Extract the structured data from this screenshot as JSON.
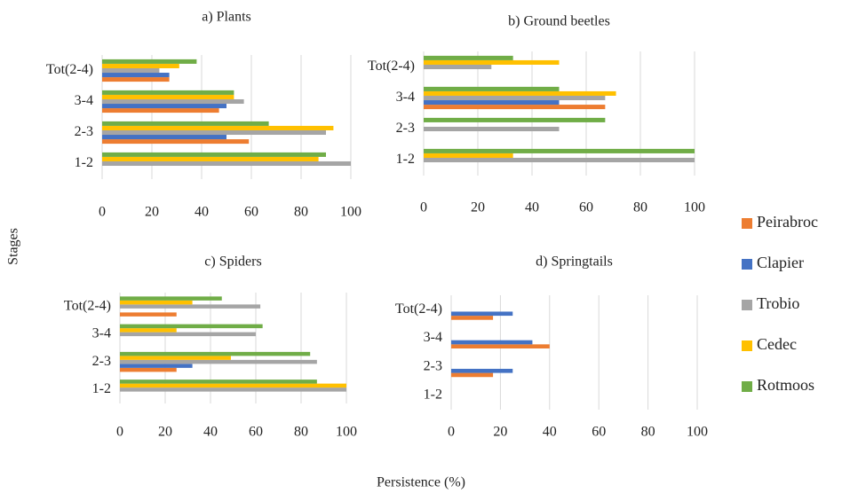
{
  "figure": {
    "xlabel": "Persistence (%)",
    "ylabel": "Stages"
  },
  "chart_data": [
    {
      "type": "barh",
      "title": "a) Plants",
      "categories": [
        "1-2",
        "2-3",
        "3-4",
        "Tot(2-4)"
      ],
      "series": [
        {
          "name": "Peirabroc",
          "color": "#ed7d31",
          "values": [
            0,
            59,
            47,
            27
          ]
        },
        {
          "name": "Clapier",
          "color": "#4472c4",
          "values": [
            0,
            50,
            50,
            27
          ]
        },
        {
          "name": "Trobio",
          "color": "#a5a5a5",
          "values": [
            100,
            90,
            57,
            23
          ]
        },
        {
          "name": "Cedec",
          "color": "#ffc000",
          "values": [
            87,
            93,
            53,
            31
          ]
        },
        {
          "name": "Rotmoos",
          "color": "#70ad47",
          "values": [
            90,
            67,
            53,
            38
          ]
        }
      ],
      "xlim": [
        0,
        100
      ],
      "xticks": [
        0,
        20,
        40,
        60,
        80,
        100
      ],
      "grid": true
    },
    {
      "type": "barh",
      "title": "b) Ground beetles",
      "categories": [
        "1-2",
        "2-3",
        "3-4",
        "Tot(2-4)"
      ],
      "series": [
        {
          "name": "Peirabroc",
          "color": "#ed7d31",
          "values": [
            0,
            0,
            67,
            0
          ]
        },
        {
          "name": "Clapier",
          "color": "#4472c4",
          "values": [
            0,
            0,
            50,
            0
          ]
        },
        {
          "name": "Trobio",
          "color": "#a5a5a5",
          "values": [
            100,
            50,
            67,
            25
          ]
        },
        {
          "name": "Cedec",
          "color": "#ffc000",
          "values": [
            33,
            0,
            71,
            50
          ]
        },
        {
          "name": "Rotmoos",
          "color": "#70ad47",
          "values": [
            100,
            67,
            50,
            33
          ]
        }
      ],
      "xlim": [
        0,
        100
      ],
      "xticks": [
        0,
        20,
        40,
        60,
        80,
        100
      ],
      "grid": true
    },
    {
      "type": "barh",
      "title": "c) Spiders",
      "categories": [
        "1-2",
        "2-3",
        "3-4",
        "Tot(2-4)"
      ],
      "series": [
        {
          "name": "Peirabroc",
          "color": "#ed7d31",
          "values": [
            0,
            25,
            0,
            25
          ]
        },
        {
          "name": "Clapier",
          "color": "#4472c4",
          "values": [
            0,
            32,
            0,
            0
          ]
        },
        {
          "name": "Trobio",
          "color": "#a5a5a5",
          "values": [
            100,
            87,
            60,
            62
          ]
        },
        {
          "name": "Cedec",
          "color": "#ffc000",
          "values": [
            100,
            49,
            25,
            32
          ]
        },
        {
          "name": "Rotmoos",
          "color": "#70ad47",
          "values": [
            87,
            84,
            63,
            45
          ]
        }
      ],
      "xlim": [
        0,
        100
      ],
      "xticks": [
        0,
        20,
        40,
        60,
        80,
        100
      ],
      "grid": true
    },
    {
      "type": "barh",
      "title": "d) Springtails",
      "categories": [
        "1-2",
        "2-3",
        "3-4",
        "Tot(2-4)"
      ],
      "series": [
        {
          "name": "Peirabroc",
          "color": "#ed7d31",
          "values": [
            0,
            17,
            40,
            17
          ]
        },
        {
          "name": "Clapier",
          "color": "#4472c4",
          "values": [
            0,
            25,
            33,
            25
          ]
        },
        {
          "name": "Trobio",
          "color": "#a5a5a5",
          "values": [
            0,
            0,
            0,
            0
          ]
        },
        {
          "name": "Cedec",
          "color": "#ffc000",
          "values": [
            0,
            0,
            0,
            0
          ]
        },
        {
          "name": "Rotmoos",
          "color": "#70ad47",
          "values": [
            0,
            0,
            0,
            0
          ]
        }
      ],
      "xlim": [
        0,
        100
      ],
      "xticks": [
        0,
        20,
        40,
        60,
        80,
        100
      ],
      "grid": true
    }
  ]
}
